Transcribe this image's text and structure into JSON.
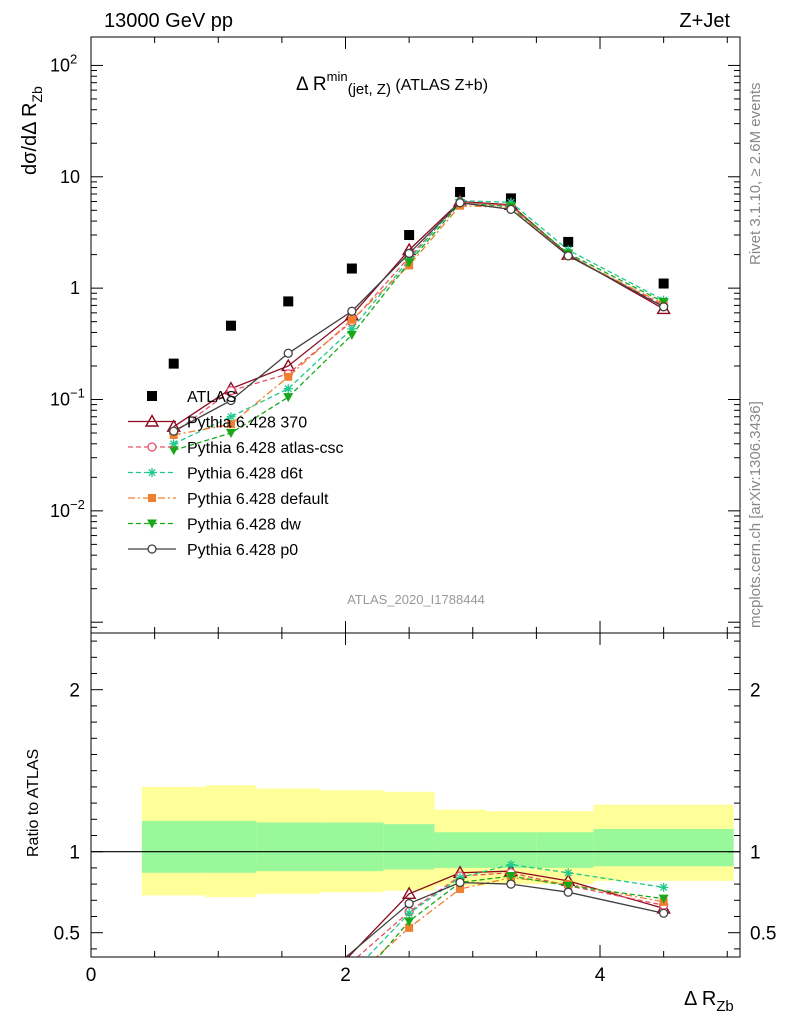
{
  "header": {
    "left": "13000 GeV pp",
    "right": "Z+Jet"
  },
  "side_labels": {
    "rivet": "Rivet 3.1.10, ≥ 2.6M events",
    "mcplots": "mcplots.cern.ch [arXiv:1306.3436]"
  },
  "watermark": "ATLAS_2020_I1788444",
  "colors": {
    "data": "#000000",
    "p370": "#8b0a1f",
    "atlas_csc": "#e8506a",
    "d6t": "#1fc98a",
    "default": "#f08030",
    "dw": "#1aa81a",
    "p0": "#404040",
    "band_inner": "#99f899",
    "band_outer": "#ffff99"
  },
  "chart_data": [
    {
      "type": "scatter",
      "title_main": "Δ R",
      "title_sup": "min",
      "title_sub": "(jet, Z)",
      "title_tail": " (ATLAS Z+b)",
      "ylabel_main": "dσ/dΔ R",
      "ylabel_sub": "Zb",
      "yscale": "log",
      "ylim": [
        0.0008,
        180
      ],
      "xlim": [
        0,
        5.1
      ],
      "yticks": [
        {
          "v": 0.01,
          "base": "10",
          "exp": "−2"
        },
        {
          "v": 0.1,
          "base": "10",
          "exp": "−1"
        },
        {
          "v": 1,
          "base": "1",
          "exp": ""
        },
        {
          "v": 10,
          "base": "10",
          "exp": ""
        },
        {
          "v": 100,
          "base": "10",
          "exp": "2"
        }
      ],
      "x": [
        0.65,
        1.1,
        1.55,
        2.05,
        2.5,
        2.9,
        3.3,
        3.75,
        4.5
      ],
      "series": [
        {
          "name": "ATLAS",
          "style": "data",
          "values": [
            0.21,
            0.46,
            0.76,
            1.5,
            3.0,
            7.3,
            6.4,
            2.6,
            1.1
          ],
          "x": [
            0.65,
            1.1,
            1.55,
            2.05,
            2.5,
            2.9,
            3.3,
            3.75,
            4.5
          ]
        },
        {
          "name": "Pythia 6.428 370",
          "style": "p370",
          "values": [
            0.057,
            0.125,
            0.2,
            0.57,
            2.2,
            6.0,
            5.6,
            2.0,
            0.65
          ],
          "x": [
            0.65,
            1.1,
            1.55,
            2.05,
            2.5,
            2.9,
            3.3,
            3.75,
            4.5
          ]
        },
        {
          "name": "Pythia 6.428 atlas-csc",
          "style": "atlas_csc",
          "values": [
            0.05,
            0.12,
            0.17,
            0.5,
            1.9,
            5.9,
            5.5,
            1.95,
            0.7
          ],
          "x": [
            0.65,
            1.1,
            1.55,
            2.05,
            2.5,
            2.9,
            3.3,
            3.75,
            4.5
          ]
        },
        {
          "name": "Pythia 6.428 d6t",
          "style": "d6t",
          "values": [
            0.04,
            0.07,
            0.125,
            0.43,
            1.8,
            6.1,
            5.9,
            2.2,
            0.78
          ],
          "x": [
            0.65,
            1.1,
            1.55,
            2.05,
            2.5,
            2.9,
            3.3,
            3.75,
            4.5
          ]
        },
        {
          "name": "Pythia 6.428 default",
          "style": "default",
          "values": [
            0.048,
            0.06,
            0.16,
            0.52,
            1.6,
            5.5,
            5.3,
            1.95,
            0.72
          ],
          "x": [
            0.65,
            1.1,
            1.55,
            2.05,
            2.5,
            2.9,
            3.3,
            3.75,
            4.5
          ]
        },
        {
          "name": "Pythia 6.428 dw",
          "style": "dw",
          "values": [
            0.035,
            0.05,
            0.105,
            0.38,
            1.7,
            5.8,
            5.4,
            2.05,
            0.75
          ],
          "x": [
            0.65,
            1.1,
            1.55,
            2.05,
            2.5,
            2.9,
            3.3,
            3.75,
            4.5
          ]
        },
        {
          "name": "Pythia 6.428 p0",
          "style": "p0",
          "values": [
            0.052,
            0.098,
            0.26,
            0.62,
            2.05,
            5.85,
            5.1,
            1.95,
            0.68
          ],
          "x": [
            0.65,
            1.1,
            1.55,
            2.05,
            2.5,
            2.9,
            3.3,
            3.75,
            4.5
          ]
        }
      ]
    },
    {
      "type": "scatter",
      "ylabel": "Ratio to ATLAS",
      "xlabel_main": "Δ R",
      "xlabel_sub": "Zb",
      "ylim": [
        0.35,
        2.35
      ],
      "xlim": [
        0,
        5.1
      ],
      "yticks": [
        0.5,
        1,
        2
      ],
      "xticks": [
        0,
        2,
        4
      ],
      "reference": 1,
      "bands": [
        {
          "x": [
            0.4,
            0.9
          ],
          "inner": [
            0.87,
            1.19
          ],
          "outer": [
            0.73,
            1.4
          ]
        },
        {
          "x": [
            0.9,
            1.3
          ],
          "inner": [
            0.87,
            1.19
          ],
          "outer": [
            0.72,
            1.41
          ]
        },
        {
          "x": [
            1.3,
            1.8
          ],
          "inner": [
            0.88,
            1.18
          ],
          "outer": [
            0.74,
            1.39
          ]
        },
        {
          "x": [
            1.8,
            2.3
          ],
          "inner": [
            0.88,
            1.18
          ],
          "outer": [
            0.75,
            1.38
          ]
        },
        {
          "x": [
            2.3,
            2.7
          ],
          "inner": [
            0.89,
            1.17
          ],
          "outer": [
            0.76,
            1.37
          ]
        },
        {
          "x": [
            2.7,
            3.1
          ],
          "inner": [
            0.9,
            1.12
          ],
          "outer": [
            0.79,
            1.26
          ]
        },
        {
          "x": [
            3.1,
            3.5
          ],
          "inner": [
            0.9,
            1.12
          ],
          "outer": [
            0.8,
            1.25
          ]
        },
        {
          "x": [
            3.5,
            3.95
          ],
          "inner": [
            0.9,
            1.12
          ],
          "outer": [
            0.8,
            1.25
          ]
        },
        {
          "x": [
            3.95,
            5.05
          ],
          "inner": [
            0.91,
            1.14
          ],
          "outer": [
            0.82,
            1.29
          ]
        }
      ],
      "series": [
        {
          "name": "Pythia 6.428 370",
          "style": "p370",
          "x": [
            1.9,
            2.5,
            2.9,
            3.3,
            3.75,
            4.5
          ],
          "values": [
            0.25,
            0.74,
            0.87,
            0.88,
            0.82,
            0.65
          ]
        },
        {
          "name": "Pythia 6.428 atlas-csc",
          "style": "atlas_csc",
          "x": [
            1.95,
            2.5,
            2.9,
            3.3,
            3.75,
            4.5
          ],
          "values": [
            0.25,
            0.63,
            0.85,
            0.87,
            0.79,
            0.67
          ]
        },
        {
          "name": "Pythia 6.428 d6t",
          "style": "d6t",
          "x": [
            2.05,
            2.5,
            2.9,
            3.3,
            3.75,
            4.5
          ],
          "values": [
            0.25,
            0.62,
            0.84,
            0.92,
            0.87,
            0.78
          ]
        },
        {
          "name": "Pythia 6.428 default",
          "style": "default",
          "x": [
            2.1,
            2.5,
            2.9,
            3.3,
            3.75,
            4.5
          ],
          "values": [
            0.25,
            0.53,
            0.77,
            0.84,
            0.8,
            0.69
          ]
        },
        {
          "name": "Pythia 6.428 dw",
          "style": "dw",
          "x": [
            2.15,
            2.5,
            2.9,
            3.3,
            3.75,
            4.5
          ],
          "values": [
            0.25,
            0.57,
            0.81,
            0.85,
            0.79,
            0.71
          ]
        },
        {
          "name": "Pythia 6.428 p0",
          "style": "p0",
          "x": [
            1.85,
            2.05,
            2.5,
            2.9,
            3.3,
            3.75,
            4.5
          ],
          "values": [
            0.25,
            0.38,
            0.68,
            0.81,
            0.8,
            0.75,
            0.62
          ]
        }
      ]
    }
  ]
}
